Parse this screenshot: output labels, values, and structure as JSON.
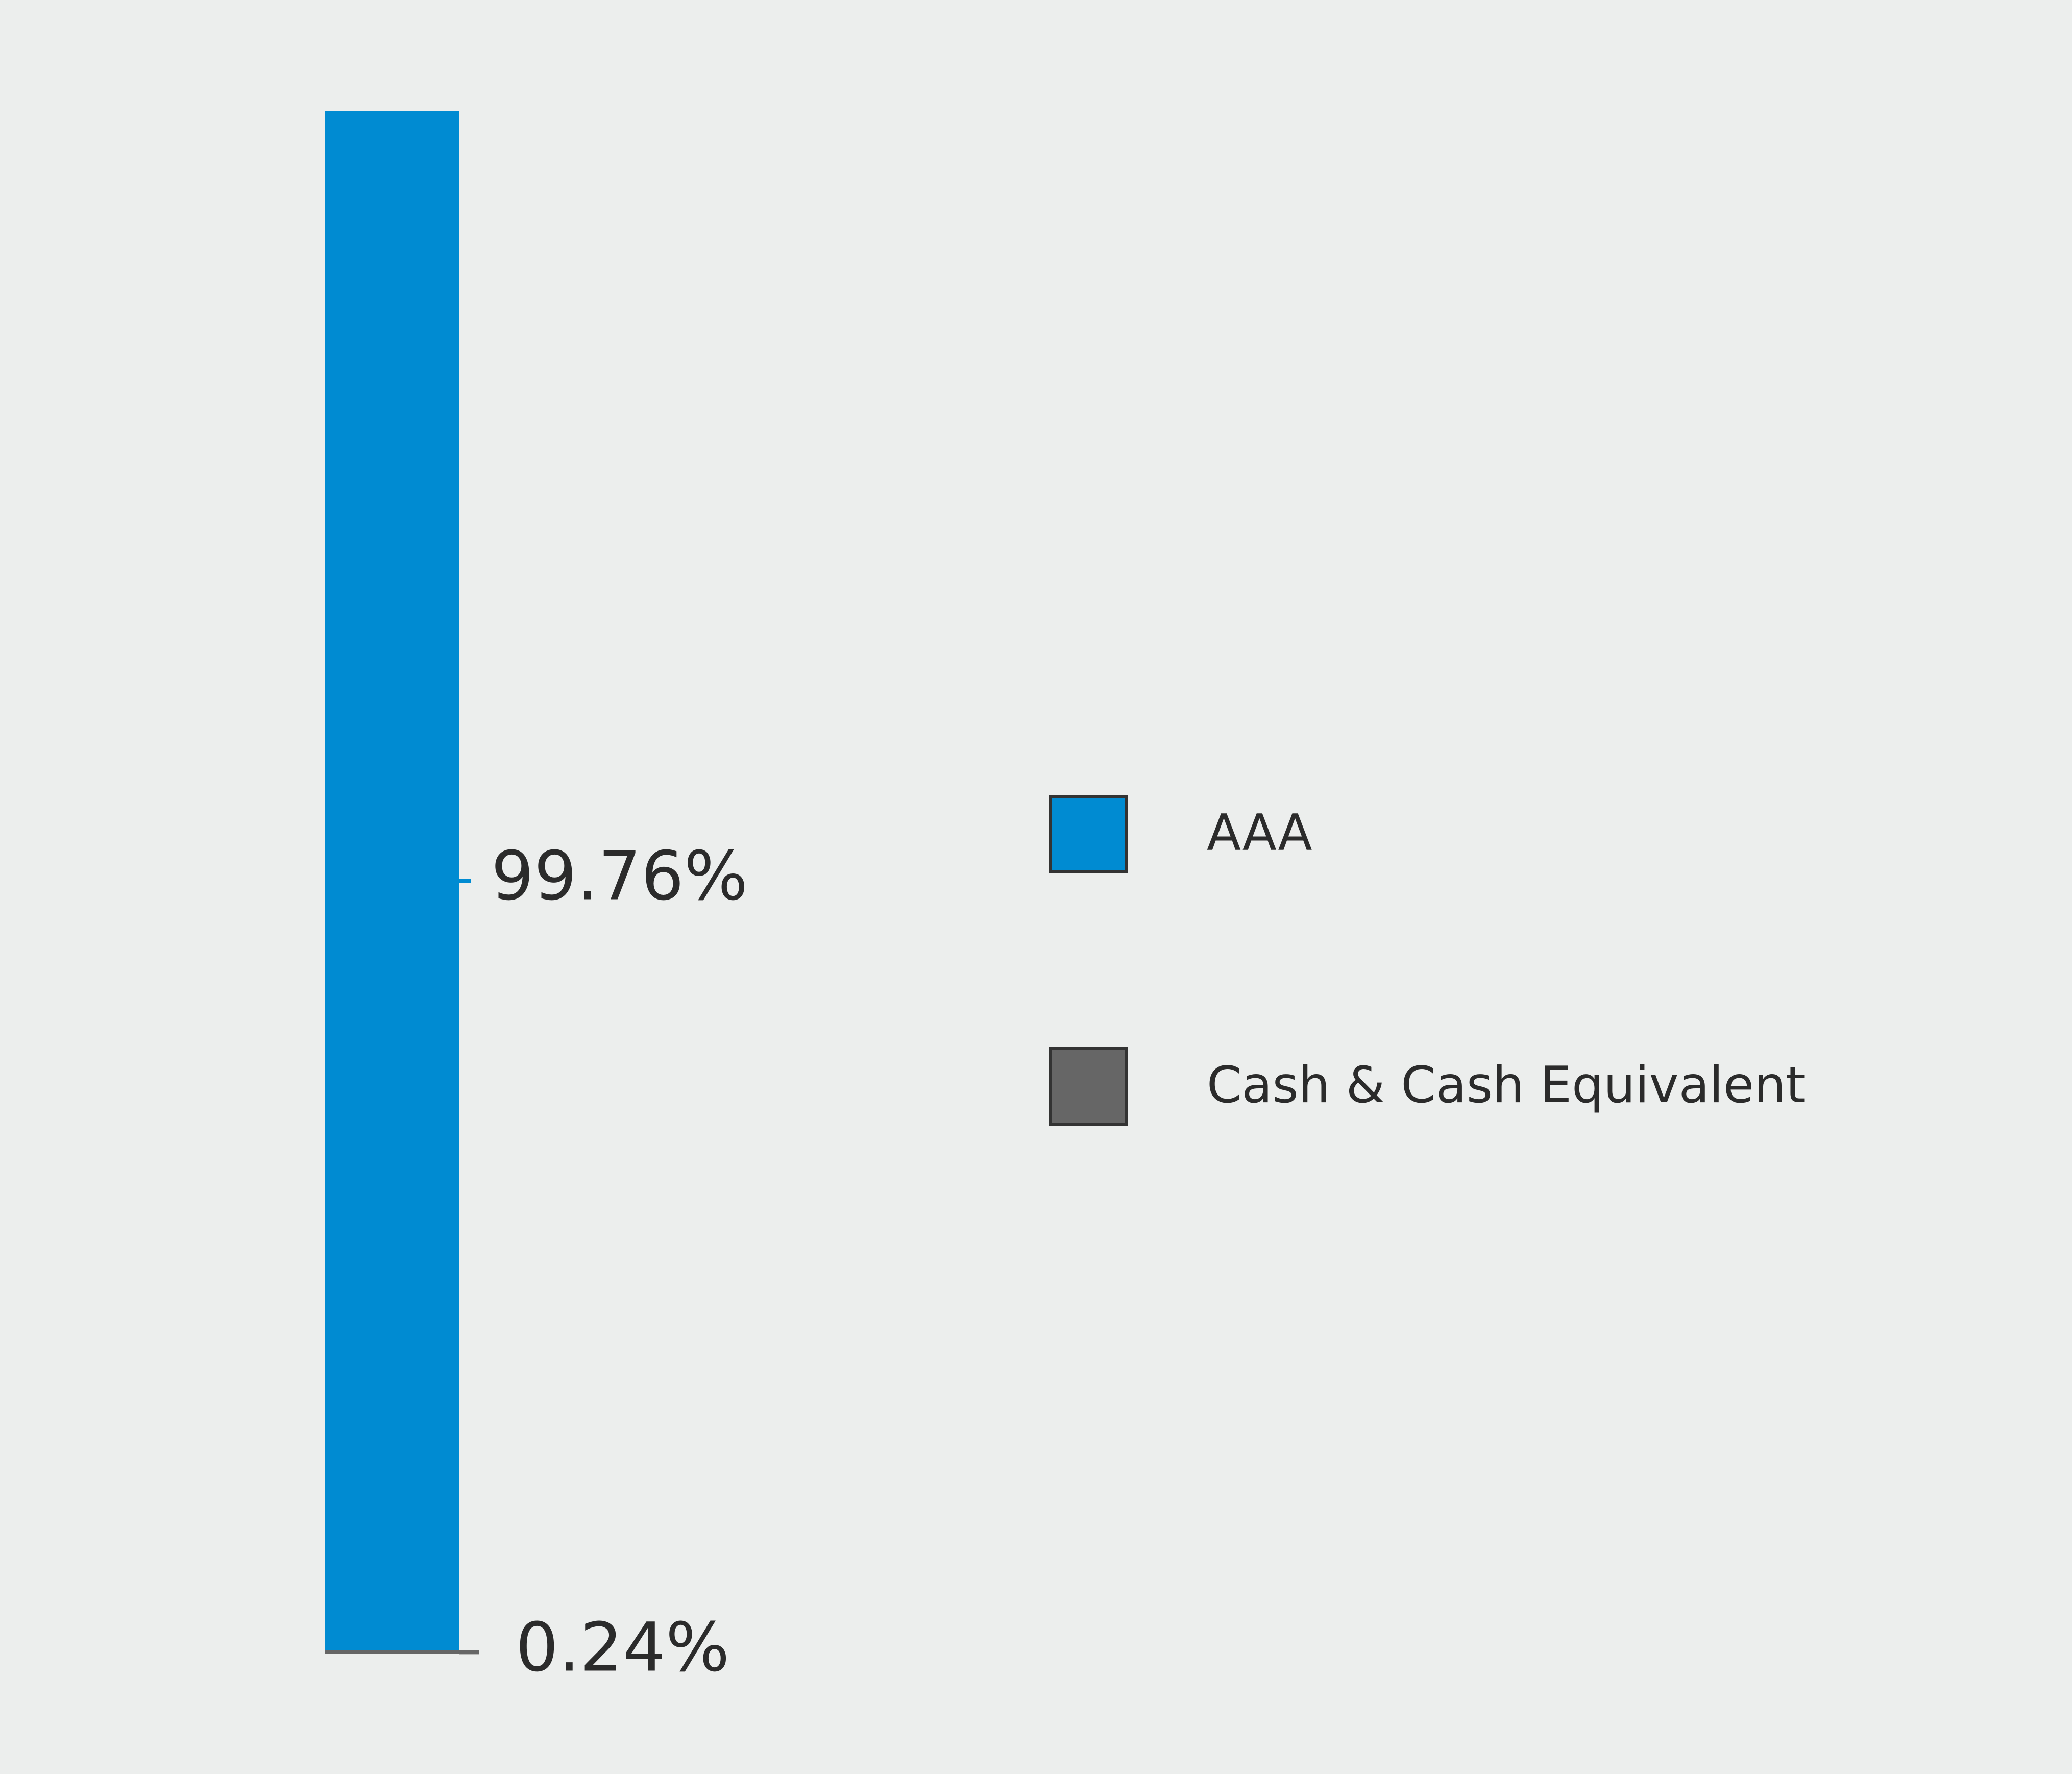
{
  "chart_data": {
    "type": "bar",
    "stacked": true,
    "categories": [
      ""
    ],
    "series": [
      {
        "name": "Cash & Cash Equivalent",
        "values": [
          0.24
        ],
        "color": "#666666",
        "label": "0.24%"
      },
      {
        "name": "AAA",
        "values": [
          99.76
        ],
        "color": "#008bd2",
        "label": "99.76%"
      }
    ],
    "legend_order": [
      "AAA",
      "Cash & Cash Equivalent"
    ],
    "legend_position": "right",
    "ylim": [
      0,
      100
    ],
    "grid": false,
    "title": "",
    "xlabel": "",
    "ylabel": ""
  },
  "colors": {
    "background": "#eceeed",
    "label_text": "#2b2b2b",
    "legend_border": "#333333"
  }
}
